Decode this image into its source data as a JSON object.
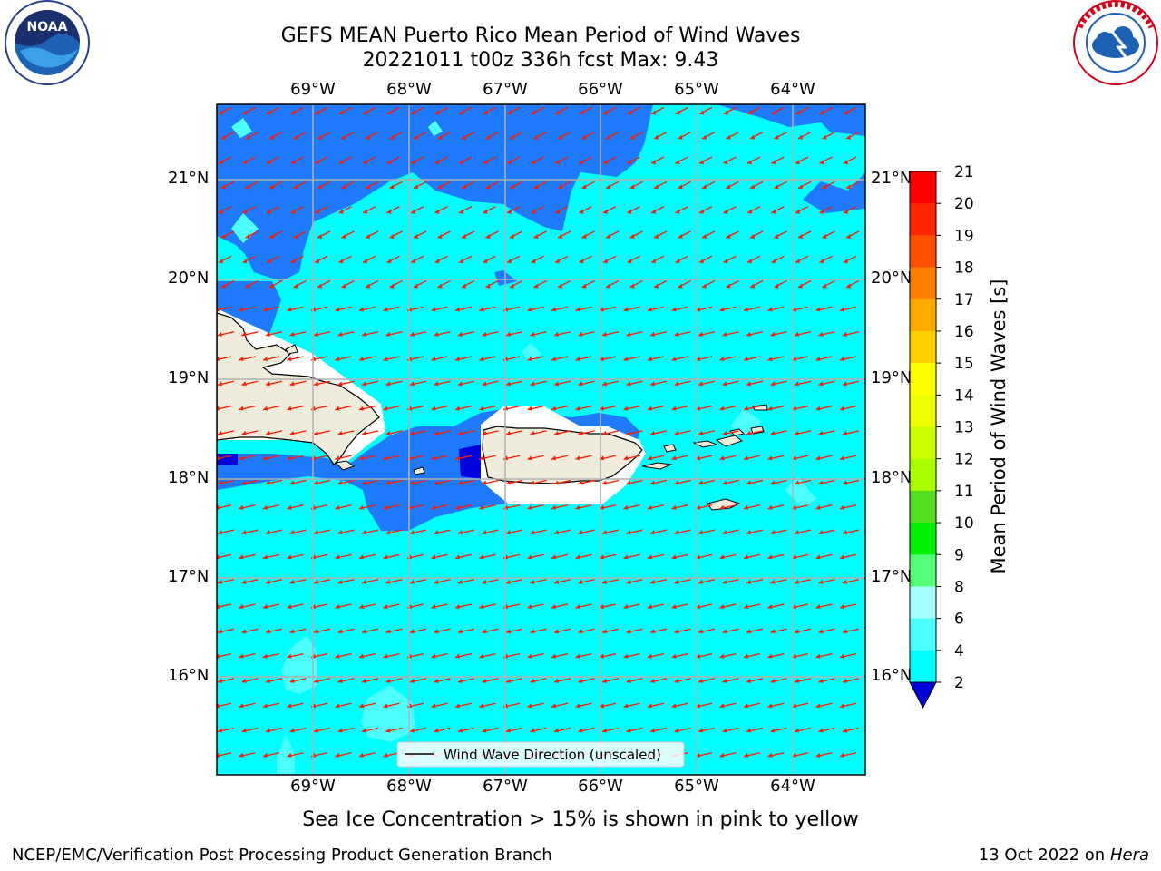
{
  "header": {
    "title_line1": "GEFS MEAN Puerto Rico Mean Period of Wind Waves",
    "title_line2": "20221011 t00z 336h fcst   Max: 9.43"
  },
  "logos": {
    "left": {
      "name": "noaa-logo",
      "text": "NOAA",
      "ring_text": "NATIONAL OCEANIC AND ATMOSPHERIC ADMINISTRATION · U.S. DEPARTMENT OF COMMERCE"
    },
    "right": {
      "name": "nws-logo",
      "ring_text": "NATIONAL WEATHER SERVICE"
    }
  },
  "map": {
    "lon_labels": [
      "69°W",
      "68°W",
      "67°W",
      "66°W",
      "65°W",
      "64°W"
    ],
    "lat_labels": [
      "21°N",
      "20°N",
      "19°N",
      "18°N",
      "17°N",
      "16°N"
    ],
    "legend_label": "Wind Wave Direction (unscaled)",
    "colors": {
      "ocean_main": "#00ffff",
      "ocean_light": "#4dffff",
      "ocean_lighter": "#a6ffff",
      "dark_blue": "#1e7bff",
      "navy": "#0000dd",
      "land": "#efecdc",
      "arrow": "#ff1a00",
      "grid": "#b0b0b0"
    }
  },
  "colorbar": {
    "label": "Mean Period of Wind Waves [s]",
    "ticks": [
      "21",
      "20",
      "19",
      "18",
      "17",
      "16",
      "15",
      "14",
      "13",
      "12",
      "11",
      "10",
      "9",
      "8",
      "6",
      "4",
      "2"
    ],
    "colors": [
      "#ff0000",
      "#ff2600",
      "#ff5000",
      "#ff8000",
      "#ffaa00",
      "#ffd000",
      "#ffff00",
      "#eeff00",
      "#ccff00",
      "#aaff00",
      "#55dd22",
      "#00ee00",
      "#55ff77",
      "#a6ffff",
      "#4dffff",
      "#00ffff",
      "#1e7bff"
    ],
    "extend_color": "#0000dd"
  },
  "note": "Sea Ice Concentration > 15% is shown in pink to yellow",
  "footer": {
    "left": "NCEP/EMC/Verification Post Processing Product Generation Branch",
    "right_prefix": "13 Oct 2022 on ",
    "right_italic": "Hera"
  }
}
